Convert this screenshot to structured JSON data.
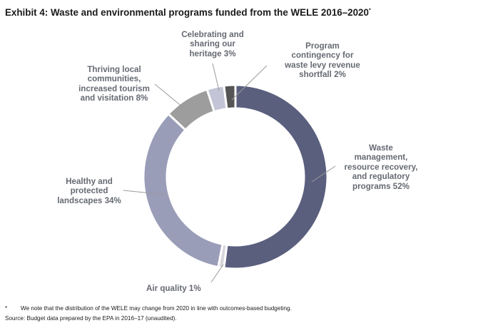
{
  "title": "Exhibit 4: Waste and environmental programs funded from the WELE 2016–2020",
  "title_mark": "*",
  "chart_data": {
    "type": "pie",
    "title": "Exhibit 4: Waste and environmental programs funded from the WELE 2016–2020",
    "donut": true,
    "slices": [
      {
        "label": "Waste management, resource recovery, and regulatory programs 52%",
        "value": 52,
        "color": "#5b5f7e"
      },
      {
        "label": "Air quality 1%",
        "value": 1,
        "color": "#d6d6dc"
      },
      {
        "label": "Healthy and protected landscapes 34%",
        "value": 34,
        "color": "#9a9db8"
      },
      {
        "label": "Thriving local communities, increased tourism and visitation 8%",
        "value": 8,
        "color": "#9d9d9d"
      },
      {
        "label": "Celebrating and sharing our heritage 3%",
        "value": 3,
        "color": "#c3c5d6"
      },
      {
        "label": "Program contingency for waste levy revenue shortfall 2%",
        "value": 2,
        "color": "#555555"
      }
    ]
  },
  "labels": {
    "waste": "Waste\nmanagement,\nresource recovery,\nand regulatory\nprograms 52%",
    "air": "Air quality 1%",
    "healthy": "Healthy and\nprotected\nlandscapes 34%",
    "thriving": "Thriving local\ncommunities,\nincreased tourism\nand visitation 8%",
    "heritage": "Celebrating and\nsharing our\nheritage 3%",
    "contingency": "Program\ncontingency for\nwaste levy revenue\nshortfall 2%"
  },
  "footnote": {
    "mark": "*",
    "text": "We note that the distribution of the WELE may change from 2020 in line with outcomes-based budgeting.",
    "source": "Source: Budget data prepared by the EPA in 2016–17 (unaudited)."
  }
}
